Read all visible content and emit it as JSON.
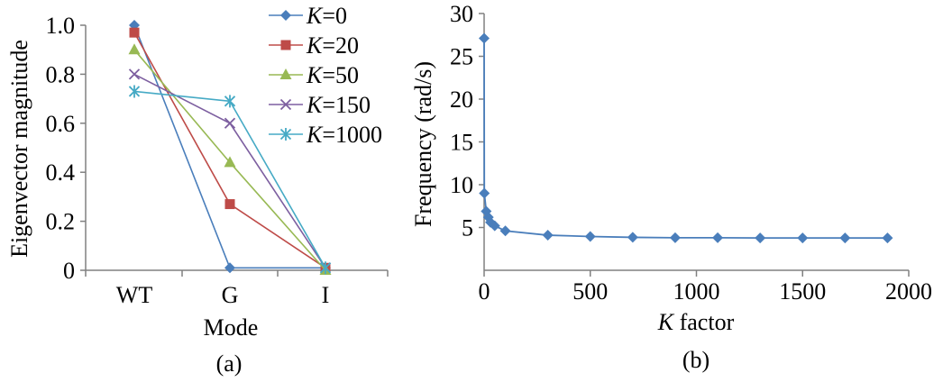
{
  "chart_data": [
    {
      "panel": "(a)",
      "type": "line",
      "xlabel": "Mode",
      "ylabel": "Eigenvector magnitude",
      "caption": "(a)",
      "categories": [
        "WT",
        "G",
        "I"
      ],
      "ylim": [
        0,
        1.0
      ],
      "yticks": [
        "0",
        "0.2",
        "0.4",
        "0.6",
        "0.8",
        "1.0"
      ],
      "legend_position": "top-right",
      "grid": false,
      "series": [
        {
          "name_prefix": "K",
          "name_suffix": "=0",
          "color": "#4a7ebb",
          "marker": "diamond",
          "values": [
            1.0,
            0.01,
            0.01
          ]
        },
        {
          "name_prefix": "K",
          "name_suffix": "=20",
          "color": "#be4b48",
          "marker": "square",
          "values": [
            0.97,
            0.27,
            0.01
          ]
        },
        {
          "name_prefix": "K",
          "name_suffix": "=50",
          "color": "#98b954",
          "marker": "triangle",
          "values": [
            0.9,
            0.44,
            0.0
          ]
        },
        {
          "name_prefix": "K",
          "name_suffix": "=150",
          "color": "#7d5fa0",
          "marker": "x",
          "values": [
            0.8,
            0.6,
            0.01
          ]
        },
        {
          "name_prefix": "K",
          "name_suffix": "=1000",
          "color": "#46aac5",
          "marker": "star",
          "values": [
            0.73,
            0.69,
            0.01
          ]
        }
      ]
    },
    {
      "panel": "(b)",
      "type": "line",
      "xlabel_italic": "K",
      "xlabel_rest": " factor",
      "ylabel": "Frequency (rad/s)",
      "caption": "(b)",
      "xlim": [
        0,
        2000
      ],
      "ylim": [
        0,
        30
      ],
      "xticks": [
        "0",
        "500",
        "1000",
        "1500",
        "2000"
      ],
      "yticks": [
        "5",
        "10",
        "15",
        "20",
        "25",
        "30"
      ],
      "grid": false,
      "series": [
        {
          "color": "#4a7ebb",
          "marker": "diamond",
          "x": [
            0,
            1,
            10,
            20,
            30,
            50,
            100,
            300,
            500,
            700,
            900,
            1100,
            1300,
            1500,
            1700,
            1900
          ],
          "y": [
            27.1,
            9.0,
            6.9,
            6.2,
            5.6,
            5.2,
            4.6,
            4.1,
            3.95,
            3.85,
            3.8,
            3.8,
            3.78,
            3.78,
            3.78,
            3.77
          ]
        }
      ]
    }
  ]
}
